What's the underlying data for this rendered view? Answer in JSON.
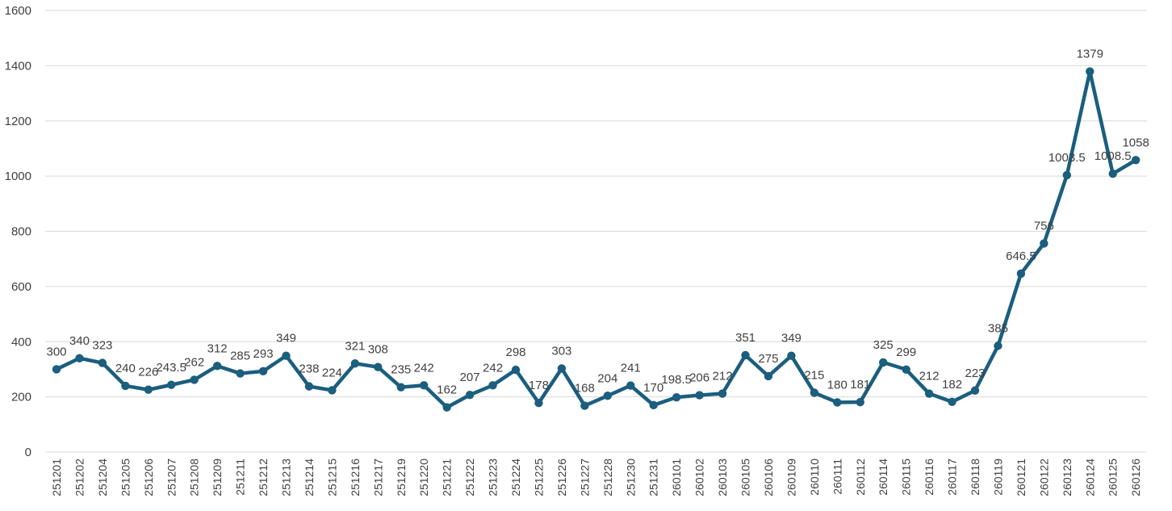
{
  "chart_data": {
    "type": "line",
    "title": "",
    "xlabel": "",
    "ylabel": "",
    "ylim": [
      0,
      1600
    ],
    "yticks": [
      0,
      200,
      400,
      600,
      800,
      1000,
      1200,
      1400,
      1600
    ],
    "grid": true,
    "legend": "none",
    "series_color": "#1b5e7e",
    "categories": [
      "251201",
      "251202",
      "251204",
      "251205",
      "251206",
      "251207",
      "251208",
      "251209",
      "251211",
      "251212",
      "251213",
      "251214",
      "251215",
      "251216",
      "251217",
      "251219",
      "251220",
      "251221",
      "251222",
      "251223",
      "251224",
      "251225",
      "251226",
      "251227",
      "251228",
      "251230",
      "251231",
      "260101",
      "260102",
      "260103",
      "260105",
      "260106",
      "260109",
      "260110",
      "260111",
      "260112",
      "260114",
      "260115",
      "260116",
      "260117",
      "260118",
      "260119",
      "260121",
      "260122",
      "260123",
      "260124",
      "260125",
      "260126"
    ],
    "series": [
      {
        "values": [
          300,
          340,
          323,
          240,
          226,
          243.5,
          262,
          312,
          285,
          293,
          349,
          238,
          224,
          321,
          308,
          235,
          242,
          162,
          207,
          242,
          298,
          178,
          303,
          168,
          204,
          241,
          170,
          198.5,
          206,
          212,
          351,
          275,
          349,
          215,
          180,
          181,
          325,
          299,
          212,
          182,
          223,
          385,
          646.5,
          756,
          1003.5,
          1379,
          1008.5,
          1058
        ]
      }
    ]
  }
}
